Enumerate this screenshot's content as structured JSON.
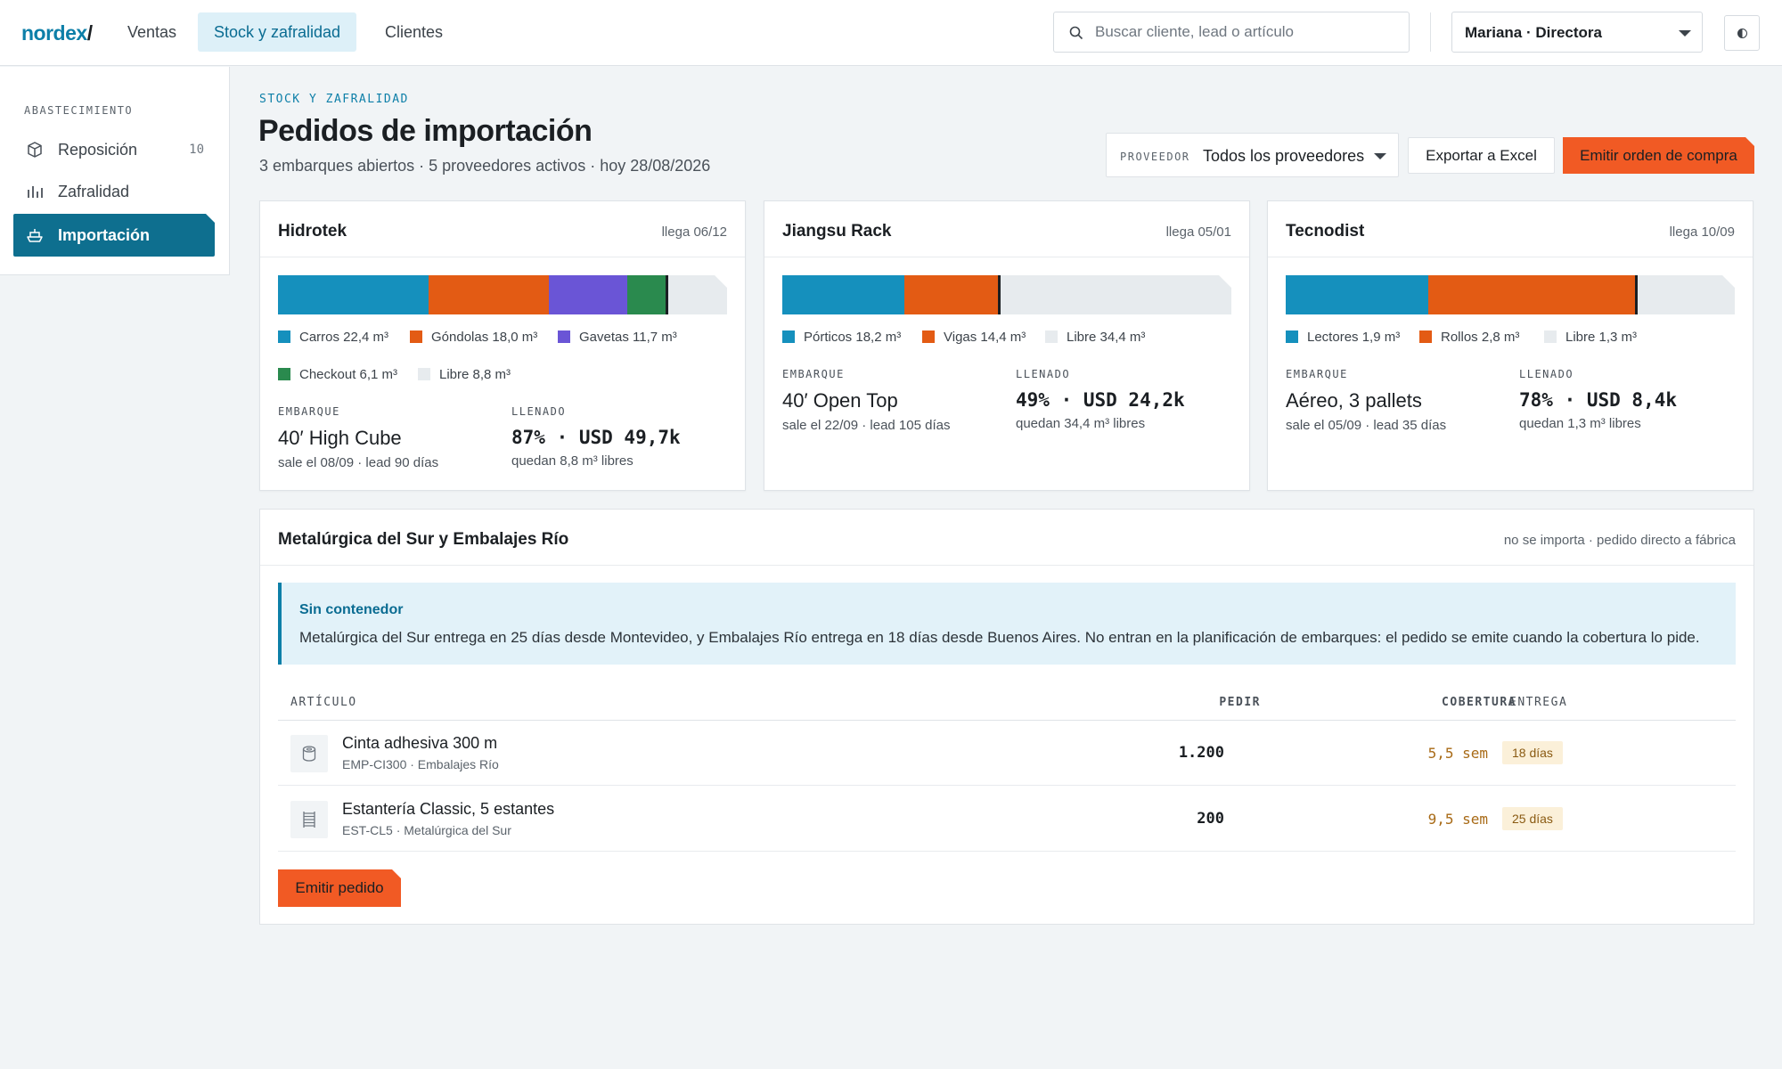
{
  "app": {
    "logo": "nordex",
    "logo_slash": "/",
    "nav": [
      {
        "label": "Ventas",
        "active": false
      },
      {
        "label": "Stock y zafralidad",
        "active": true
      },
      {
        "label": "Clientes",
        "active": false
      }
    ],
    "search": {
      "placeholder": "Buscar cliente, lead o artículo",
      "value": ""
    },
    "user": "Mariana · Directora"
  },
  "sidebar": {
    "section": "ABASTECIMIENTO",
    "items": [
      {
        "label": "Reposición",
        "count": "10",
        "icon": "box-icon",
        "active": false
      },
      {
        "label": "Zafralidad",
        "count": "",
        "icon": "bar-chart-icon",
        "active": false
      },
      {
        "label": "Importación",
        "count": "",
        "icon": "ship-icon",
        "active": true
      }
    ]
  },
  "page": {
    "eyebrow": "STOCK Y ZAFRALIDAD",
    "title": "Pedidos de importación",
    "subtitle": "3 embarques abiertos · 5 proveedores activos · hoy 28/08/2026",
    "provider_label": "PROVEEDOR",
    "provider_value": "Todos los proveedores",
    "export_label": "Exportar a Excel",
    "emit_label": "Emitir orden de compra"
  },
  "colors": {
    "blue": "#1590bd",
    "orange": "#e35b14",
    "purple": "#6a55d6",
    "green": "#2a8a4e",
    "free": "#e7ebee",
    "accent": "#f15a24"
  },
  "containers": [
    {
      "name": "Hidrotek",
      "arrival": "llega 06/12",
      "capacity_m3": 67,
      "segments": [
        {
          "label": "Carros 22,4 m³",
          "value": 22.4,
          "color": "blue"
        },
        {
          "label": "Góndolas 18,0 m³",
          "value": 18.0,
          "color": "orange"
        },
        {
          "label": "Gavetas 11,7 m³",
          "value": 11.7,
          "color": "purple"
        },
        {
          "label": "Checkout 6,1 m³",
          "value": 6.1,
          "color": "green"
        },
        {
          "label": "Libre 8,8 m³",
          "value": 8.8,
          "color": "free"
        }
      ],
      "shipment_label": "EMBARQUE",
      "shipment": "40′ High Cube",
      "shipment_sub": "sale el 08/09 · lead 90 días",
      "fill_label": "LLENADO",
      "fill": "87% · USD 49,7k",
      "fill_sub": "quedan 8,8 m³ libres"
    },
    {
      "name": "Jiangsu Rack",
      "arrival": "llega 05/01",
      "capacity_m3": 67,
      "segments": [
        {
          "label": "Pórticos 18,2 m³",
          "value": 18.2,
          "color": "blue"
        },
        {
          "label": "Vigas 14,4 m³",
          "value": 14.4,
          "color": "orange"
        },
        {
          "label": "Libre 34,4 m³",
          "value": 34.4,
          "color": "free"
        }
      ],
      "shipment_label": "EMBARQUE",
      "shipment": "40′ Open Top",
      "shipment_sub": "sale el 22/09 · lead 105 días",
      "fill_label": "LLENADO",
      "fill": "49% · USD 24,2k",
      "fill_sub": "quedan 34,4 m³ libres"
    },
    {
      "name": "Tecnodist",
      "arrival": "llega 10/09",
      "capacity_m3": 6,
      "segments": [
        {
          "label": "Lectores 1,9 m³",
          "value": 1.9,
          "color": "blue"
        },
        {
          "label": "Rollos 2,8 m³",
          "value": 2.8,
          "color": "orange"
        },
        {
          "label": "Libre 1,3 m³",
          "value": 1.3,
          "color": "free"
        }
      ],
      "shipment_label": "EMBARQUE",
      "shipment": "Aéreo, 3 pallets",
      "shipment_sub": "sale el 05/09 · lead 35 días",
      "fill_label": "LLENADO",
      "fill": "78% · USD 8,4k",
      "fill_sub": "quedan 1,3 m³ libres"
    }
  ],
  "direct": {
    "title": "Metalúrgica del Sur y Embalajes Río",
    "note": "no se importa · pedido directo a fábrica",
    "callout_title": "Sin contenedor",
    "callout_body": "Metalúrgica del Sur entrega en 25 días desde Montevideo, y Embalajes Río entrega en 18 días desde Buenos Aires. No entran en la planificación de embarques: el pedido se emite cuando la cobertura lo pide.",
    "headers": {
      "article": "ARTÍCULO",
      "order": "PEDIR",
      "coverage": "COBERTURA",
      "delivery": "ENTREGA"
    },
    "rows": [
      {
        "name": "Cinta adhesiva 300 m",
        "sku": "EMP-CI300 · Embalajes Río",
        "qty": "1.200",
        "coverage": "5,5 sem",
        "delivery": "18 días",
        "icon": "tape-roll-icon"
      },
      {
        "name": "Estantería Classic, 5 estantes",
        "sku": "EST-CL5 · Metalúrgica del Sur",
        "qty": "200",
        "coverage": "9,5 sem",
        "delivery": "25 días",
        "icon": "shelf-icon"
      }
    ],
    "issue_label": "Emitir pedido"
  }
}
